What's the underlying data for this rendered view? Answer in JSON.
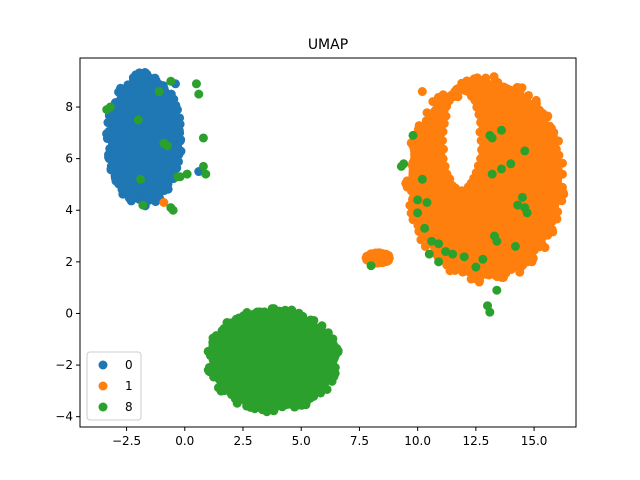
{
  "chart_data": {
    "type": "scatter",
    "title": "UMAP",
    "xlabel": "",
    "ylabel": "",
    "xlim": [
      -4.5,
      16.8
    ],
    "ylim": [
      -4.4,
      9.9
    ],
    "xticks": [
      -2.5,
      0.0,
      2.5,
      5.0,
      7.5,
      10.0,
      12.5,
      15.0
    ],
    "xtick_labels": [
      "−2.5",
      "0.0",
      "2.5",
      "5.0",
      "7.5",
      "10.0",
      "12.5",
      "15.0"
    ],
    "yticks": [
      -4,
      -2,
      0,
      2,
      4,
      6,
      8
    ],
    "ytick_labels": [
      "−4",
      "−2",
      "0",
      "2",
      "4",
      "6",
      "8"
    ],
    "grid": false,
    "legend_position": "lower-left",
    "series": [
      {
        "name": "0",
        "color": "#1f77b4",
        "clusters": [
          {
            "cx": -1.75,
            "cy": 6.75,
            "rx": 1.55,
            "ry": 2.5
          }
        ],
        "points": [
          [
            -3.3,
            7.4
          ],
          [
            -0.4,
            8.9
          ],
          [
            0.6,
            5.5
          ]
        ]
      },
      {
        "name": "1",
        "color": "#ff7f0e",
        "clusters": [
          {
            "cx": 12.9,
            "cy": 5.2,
            "rx": 3.3,
            "ry": 3.85,
            "hole": {
              "cx": 11.9,
              "cy": 6.7,
              "rx": 0.75,
              "ry": 1.8
            }
          },
          {
            "cx": 8.3,
            "cy": 2.15,
            "rx": 0.5,
            "ry": 0.2
          }
        ],
        "points": [
          [
            -0.9,
            4.3
          ],
          [
            15.5,
            4.5
          ],
          [
            10.2,
            8.6
          ]
        ]
      },
      {
        "name": "8",
        "color": "#2ca02c",
        "clusters": [
          {
            "cx": 3.8,
            "cy": -1.8,
            "rx": 2.75,
            "ry": 1.95
          }
        ],
        "points": [
          [
            -3.2,
            8.0
          ],
          [
            -3.35,
            7.9
          ],
          [
            -2.0,
            7.5
          ],
          [
            -1.9,
            5.2
          ],
          [
            -1.8,
            4.2
          ],
          [
            -1.1,
            8.6
          ],
          [
            -0.6,
            9.0
          ],
          [
            -0.9,
            6.6
          ],
          [
            -0.75,
            6.5
          ],
          [
            -0.6,
            4.1
          ],
          [
            -0.5,
            4.0
          ],
          [
            -0.3,
            5.3
          ],
          [
            -0.2,
            5.3
          ],
          [
            0.1,
            5.4
          ],
          [
            0.5,
            8.9
          ],
          [
            0.6,
            8.5
          ],
          [
            0.8,
            6.8
          ],
          [
            0.8,
            5.7
          ],
          [
            0.9,
            5.4
          ],
          [
            8.0,
            1.85
          ],
          [
            9.3,
            5.7
          ],
          [
            9.4,
            5.8
          ],
          [
            9.8,
            6.9
          ],
          [
            10.0,
            4.4
          ],
          [
            10.0,
            3.9
          ],
          [
            10.2,
            5.2
          ],
          [
            10.3,
            3.3
          ],
          [
            10.4,
            4.3
          ],
          [
            10.5,
            2.3
          ],
          [
            10.6,
            2.8
          ],
          [
            10.9,
            2.0
          ],
          [
            10.9,
            2.7
          ],
          [
            11.2,
            2.4
          ],
          [
            11.5,
            2.3
          ],
          [
            12.0,
            2.2
          ],
          [
            12.5,
            1.8
          ],
          [
            12.8,
            2.1
          ],
          [
            13.0,
            0.3
          ],
          [
            13.1,
            0.05
          ],
          [
            13.1,
            6.9
          ],
          [
            13.2,
            6.8
          ],
          [
            13.2,
            5.4
          ],
          [
            13.3,
            3.0
          ],
          [
            13.4,
            2.8
          ],
          [
            13.6,
            7.1
          ],
          [
            13.6,
            5.6
          ],
          [
            14.0,
            5.8
          ],
          [
            13.4,
            0.9
          ],
          [
            14.2,
            2.6
          ],
          [
            14.6,
            6.3
          ],
          [
            14.5,
            4.5
          ],
          [
            14.6,
            4.1
          ],
          [
            14.7,
            3.9
          ],
          [
            14.3,
            4.2
          ]
        ]
      }
    ]
  }
}
